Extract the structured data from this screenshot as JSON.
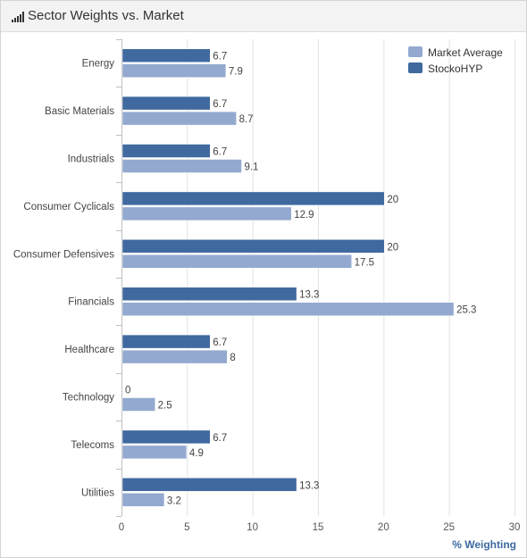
{
  "header": {
    "title": "Sector Weights vs. Market",
    "icon": "bar-chart-icon"
  },
  "colors": {
    "market": "#93a9cf",
    "stock": "#40699f",
    "grid": "#e2e2e2",
    "axis_title": "#3b6aa0"
  },
  "chart_data": {
    "type": "bar",
    "orientation": "horizontal",
    "categories": [
      "Energy",
      "Basic Materials",
      "Industrials",
      "Consumer Cyclicals",
      "Consumer Defensives",
      "Financials",
      "Healthcare",
      "Technology",
      "Telecoms",
      "Utilities"
    ],
    "series": [
      {
        "name": "StockoHYP",
        "values": [
          6.7,
          6.7,
          6.7,
          20,
          20,
          13.3,
          6.7,
          0,
          6.7,
          13.3
        ]
      },
      {
        "name": "Market Average",
        "values": [
          7.9,
          8.7,
          9.1,
          12.9,
          17.5,
          25.3,
          8,
          2.5,
          4.9,
          3.2
        ]
      }
    ],
    "xlabel": "% Weighting",
    "ylabel": "",
    "xlim": [
      0,
      30
    ],
    "xticks": [
      0,
      5,
      10,
      15,
      20,
      25,
      30
    ],
    "grid": true,
    "legend_position": "top-right",
    "legend_order": [
      "Market Average",
      "StockoHYP"
    ]
  }
}
